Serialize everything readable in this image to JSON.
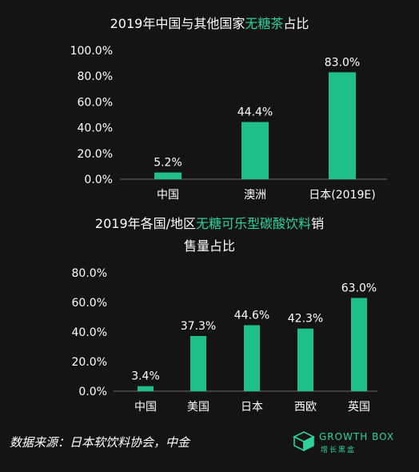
{
  "chart_data": [
    {
      "type": "bar",
      "title_parts": [
        {
          "text": "2019年中国与其他国家",
          "highlight": false
        },
        {
          "text": "无糖茶",
          "highlight": true
        },
        {
          "text": "占比",
          "highlight": false
        }
      ],
      "categories": [
        "中国",
        "澳洲",
        "日本(2019E)"
      ],
      "values": [
        5.2,
        44.4,
        83.0
      ],
      "value_labels": [
        "5.2%",
        "44.4%",
        "83.0%"
      ],
      "yticks": [
        "0.0%",
        "20.0%",
        "40.0%",
        "60.0%",
        "80.0%",
        "100.0%"
      ],
      "ylim": [
        0,
        100
      ],
      "grid": false
    },
    {
      "type": "bar",
      "title_lines": [
        [
          {
            "text": "2019年各国/地区",
            "highlight": false
          },
          {
            "text": "无糖可乐型碳酸饮料",
            "highlight": true
          },
          {
            "text": "销",
            "highlight": false
          }
        ],
        [
          {
            "text": "售量占比",
            "highlight": false
          }
        ]
      ],
      "categories": [
        "中国",
        "美国",
        "日本",
        "西欧",
        "英国"
      ],
      "values": [
        3.4,
        37.3,
        44.6,
        42.3,
        63.0
      ],
      "value_labels": [
        "3.4%",
        "37.3%",
        "44.6%",
        "42.3%",
        "63.0%"
      ],
      "yticks": [
        "0.0%",
        "20.0%",
        "40.0%",
        "60.0%",
        "80.0%"
      ],
      "ylim": [
        0,
        80
      ],
      "grid": false
    }
  ],
  "source": "数据来源：日本软饮料协会，中金",
  "logo": {
    "en": "GROWTH BOX",
    "cn": "增长黑盒"
  },
  "colors": {
    "bar": "#1fbf8a",
    "highlight": "#2ed39a",
    "background": "#141414",
    "axis": "#6a6a6a"
  }
}
